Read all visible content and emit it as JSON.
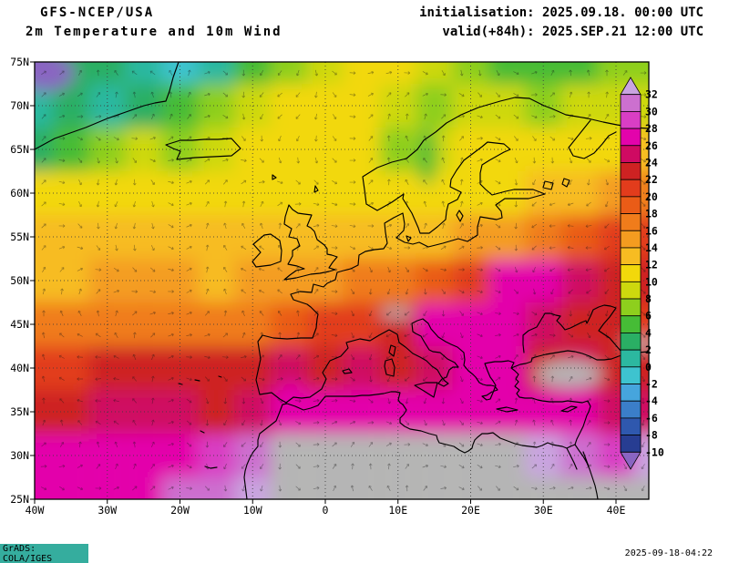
{
  "header": {
    "model_line": "GFS-NCEP/USA",
    "product_line": "2m Temperature and 10m Wind",
    "init_line": "initialisation: 2025.09.18. 00:00 UTC",
    "valid_line": "valid(+84h): 2025.SEP.21 12:00 UTC"
  },
  "footer": {
    "grads_credit": "GrADS: COLA/IGES",
    "timestamp": "2025-09-18-04:22",
    "grads_box_color": "#35ad9e"
  },
  "chart_data": {
    "type": "heatmap",
    "title": "GFS-NCEP/USA 2m Temperature and 10m Wind",
    "projection": "equirectangular",
    "extent": {
      "lon": [
        -40,
        44.5
      ],
      "lat": [
        25,
        75
      ]
    },
    "x_axis": {
      "values": [
        -40,
        -30,
        -20,
        -10,
        0,
        10,
        20,
        30,
        40
      ],
      "labels": [
        "40W",
        "30W",
        "20W",
        "10W",
        "0",
        "10E",
        "20E",
        "30E",
        "40E"
      ]
    },
    "y_axis": {
      "values": [
        75,
        70,
        65,
        60,
        55,
        50,
        45,
        40,
        35,
        30,
        25
      ],
      "labels": [
        "75N",
        "70N",
        "65N",
        "60N",
        "55N",
        "50N",
        "45N",
        "40N",
        "35N",
        "30N",
        "25N"
      ]
    },
    "legend": {
      "position": "right",
      "levels": [
        32,
        30,
        28,
        26,
        24,
        22,
        20,
        18,
        16,
        14,
        12,
        10,
        8,
        6,
        4,
        2,
        0,
        -2,
        -4,
        -6,
        -8,
        -10
      ],
      "colors": [
        "#c9a4e0",
        "#cc70cf",
        "#d93ec4",
        "#e303ab",
        "#cf0a62",
        "#ce2222",
        "#e23c1c",
        "#ea5c17",
        "#f07c1b",
        "#f49c20",
        "#f7bc22",
        "#f2d80b",
        "#cdd80e",
        "#8ecf1d",
        "#46bc36",
        "#2aaf64",
        "#2cb8a0",
        "#3ec3cf",
        "#46a5dd",
        "#3b7ec9",
        "#2f58ae",
        "#273d92",
        "#8a65c2"
      ],
      "offscale_hot_min": 34,
      "offscale_hot_color": "#b5b5b5"
    },
    "grid": {
      "lats": [
        75,
        70,
        65,
        60,
        55,
        50,
        45,
        40,
        35,
        30,
        25
      ],
      "lons": [
        -40,
        -35,
        -30,
        -25,
        -20,
        -15,
        -10,
        -5,
        0,
        5,
        10,
        15,
        20,
        25,
        30,
        35,
        40,
        45
      ],
      "temps_c": [
        [
          -11,
          2,
          2,
          0,
          -1,
          1,
          4,
          7,
          8,
          10,
          10,
          8,
          6,
          5,
          4,
          5,
          6,
          7
        ],
        [
          0,
          3,
          1,
          3,
          5,
          6,
          8,
          10,
          10,
          11,
          9,
          6,
          8,
          9,
          7,
          8,
          8,
          9
        ],
        [
          3,
          5,
          7,
          8,
          7,
          9,
          10,
          11,
          11,
          11,
          6,
          8,
          10,
          10,
          11,
          11,
          11,
          12
        ],
        [
          10,
          10,
          11,
          11,
          11,
          11,
          11,
          11,
          11,
          10,
          10,
          11,
          11,
          11,
          12,
          13,
          14,
          16
        ],
        [
          12,
          12,
          12,
          12,
          12,
          12,
          12,
          12,
          12,
          12,
          13,
          13,
          14,
          15,
          16,
          18,
          20,
          21
        ],
        [
          13,
          13,
          14,
          14,
          14,
          13,
          14,
          14,
          15,
          16,
          17,
          19,
          21,
          26,
          26,
          24,
          23,
          22
        ],
        [
          16,
          16,
          16,
          17,
          17,
          17,
          17,
          19,
          20,
          21,
          22,
          26,
          27,
          27,
          25,
          23,
          22,
          21
        ],
        [
          21,
          21,
          22,
          22,
          22,
          22,
          22,
          24,
          23,
          24,
          23,
          24,
          26,
          27,
          22,
          24,
          23,
          23
        ],
        [
          22,
          23,
          24,
          25,
          24,
          23,
          25,
          26,
          27,
          27,
          27,
          27,
          27,
          27,
          27,
          27,
          25,
          24
        ],
        [
          26,
          26,
          26,
          27,
          27,
          29,
          30,
          34,
          35,
          35,
          34,
          35,
          34,
          35,
          33,
          30,
          28,
          33
        ],
        [
          27,
          27,
          27,
          27,
          30,
          31,
          33,
          35,
          36,
          36,
          35,
          36,
          36,
          35,
          36,
          36,
          34,
          34
        ]
      ]
    },
    "overlays": [
      {
        "name": "alps-gray",
        "lon": 9.8,
        "lat": 46.3,
        "rlon": 2.3,
        "rlat": 0.6,
        "type": "gray"
      },
      {
        "name": "anatolia-gray",
        "lon": 33.5,
        "lat": 39.3,
        "rlon": 4.6,
        "rlat": 1.5,
        "type": "gray"
      },
      {
        "name": "caucasus-gray",
        "lon": 43.3,
        "lat": 42.8,
        "rlon": 2.2,
        "rlat": 0.7,
        "type": "gray"
      },
      {
        "name": "south-spain-hot",
        "lon": -4.6,
        "lat": 37.4,
        "rlon": 1.8,
        "rlat": 0.9,
        "type": "temp",
        "temp": 26
      },
      {
        "name": "scandes-cool",
        "lon": 14.0,
        "lat": 64.3,
        "rlon": 1.3,
        "rlat": 3.4,
        "type": "temp",
        "temp": 4
      },
      {
        "name": "greenland-ice",
        "lon": -38.5,
        "lat": 73.8,
        "rlon": 4.0,
        "rlat": 2.2,
        "type": "temp",
        "temp": -12
      }
    ]
  }
}
